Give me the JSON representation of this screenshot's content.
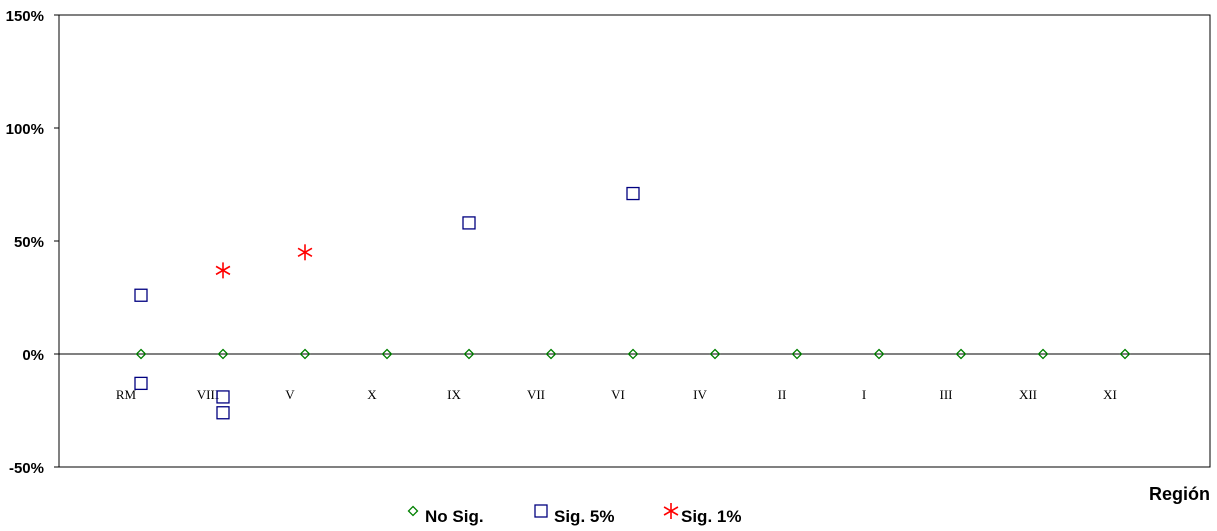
{
  "chart_data": {
    "type": "scatter",
    "xlabel": "Región",
    "ylim": [
      -50,
      150
    ],
    "y_ticks": [
      -50,
      0,
      50,
      100,
      150
    ],
    "y_tick_labels": [
      "-50%",
      "0%",
      "50%",
      "100%",
      "150%"
    ],
    "categories": [
      "RM",
      "VIII",
      "V",
      "X",
      "IX",
      "VII",
      "VI",
      "IV",
      "II",
      "I",
      "III",
      "XII",
      "XI"
    ],
    "series": [
      {
        "name": "No Sig.",
        "marker": "diamond",
        "color": "#008000",
        "points": [
          {
            "x": "RM",
            "y": 0
          },
          {
            "x": "VIII",
            "y": 0
          },
          {
            "x": "V",
            "y": 0
          },
          {
            "x": "X",
            "y": 0
          },
          {
            "x": "IX",
            "y": 0
          },
          {
            "x": "VII",
            "y": 0
          },
          {
            "x": "VI",
            "y": 0
          },
          {
            "x": "IV",
            "y": 0
          },
          {
            "x": "II",
            "y": 0
          },
          {
            "x": "I",
            "y": 0
          },
          {
            "x": "III",
            "y": 0
          },
          {
            "x": "XII",
            "y": 0
          },
          {
            "x": "XI",
            "y": 0
          }
        ]
      },
      {
        "name": "Sig. 5%",
        "marker": "square",
        "color": "#000080",
        "points": [
          {
            "x": "RM",
            "y": 26
          },
          {
            "x": "RM",
            "y": -13
          },
          {
            "x": "VIII",
            "y": -19
          },
          {
            "x": "VIII",
            "y": -26
          },
          {
            "x": "IX",
            "y": 58
          },
          {
            "x": "VI",
            "y": 71
          }
        ]
      },
      {
        "name": "Sig. 1%",
        "marker": "asterisk",
        "color": "#ff0000",
        "points": [
          {
            "x": "VIII",
            "y": 37
          },
          {
            "x": "V",
            "y": 45
          }
        ]
      }
    ],
    "grid": false,
    "legend_position": "bottom-center"
  }
}
